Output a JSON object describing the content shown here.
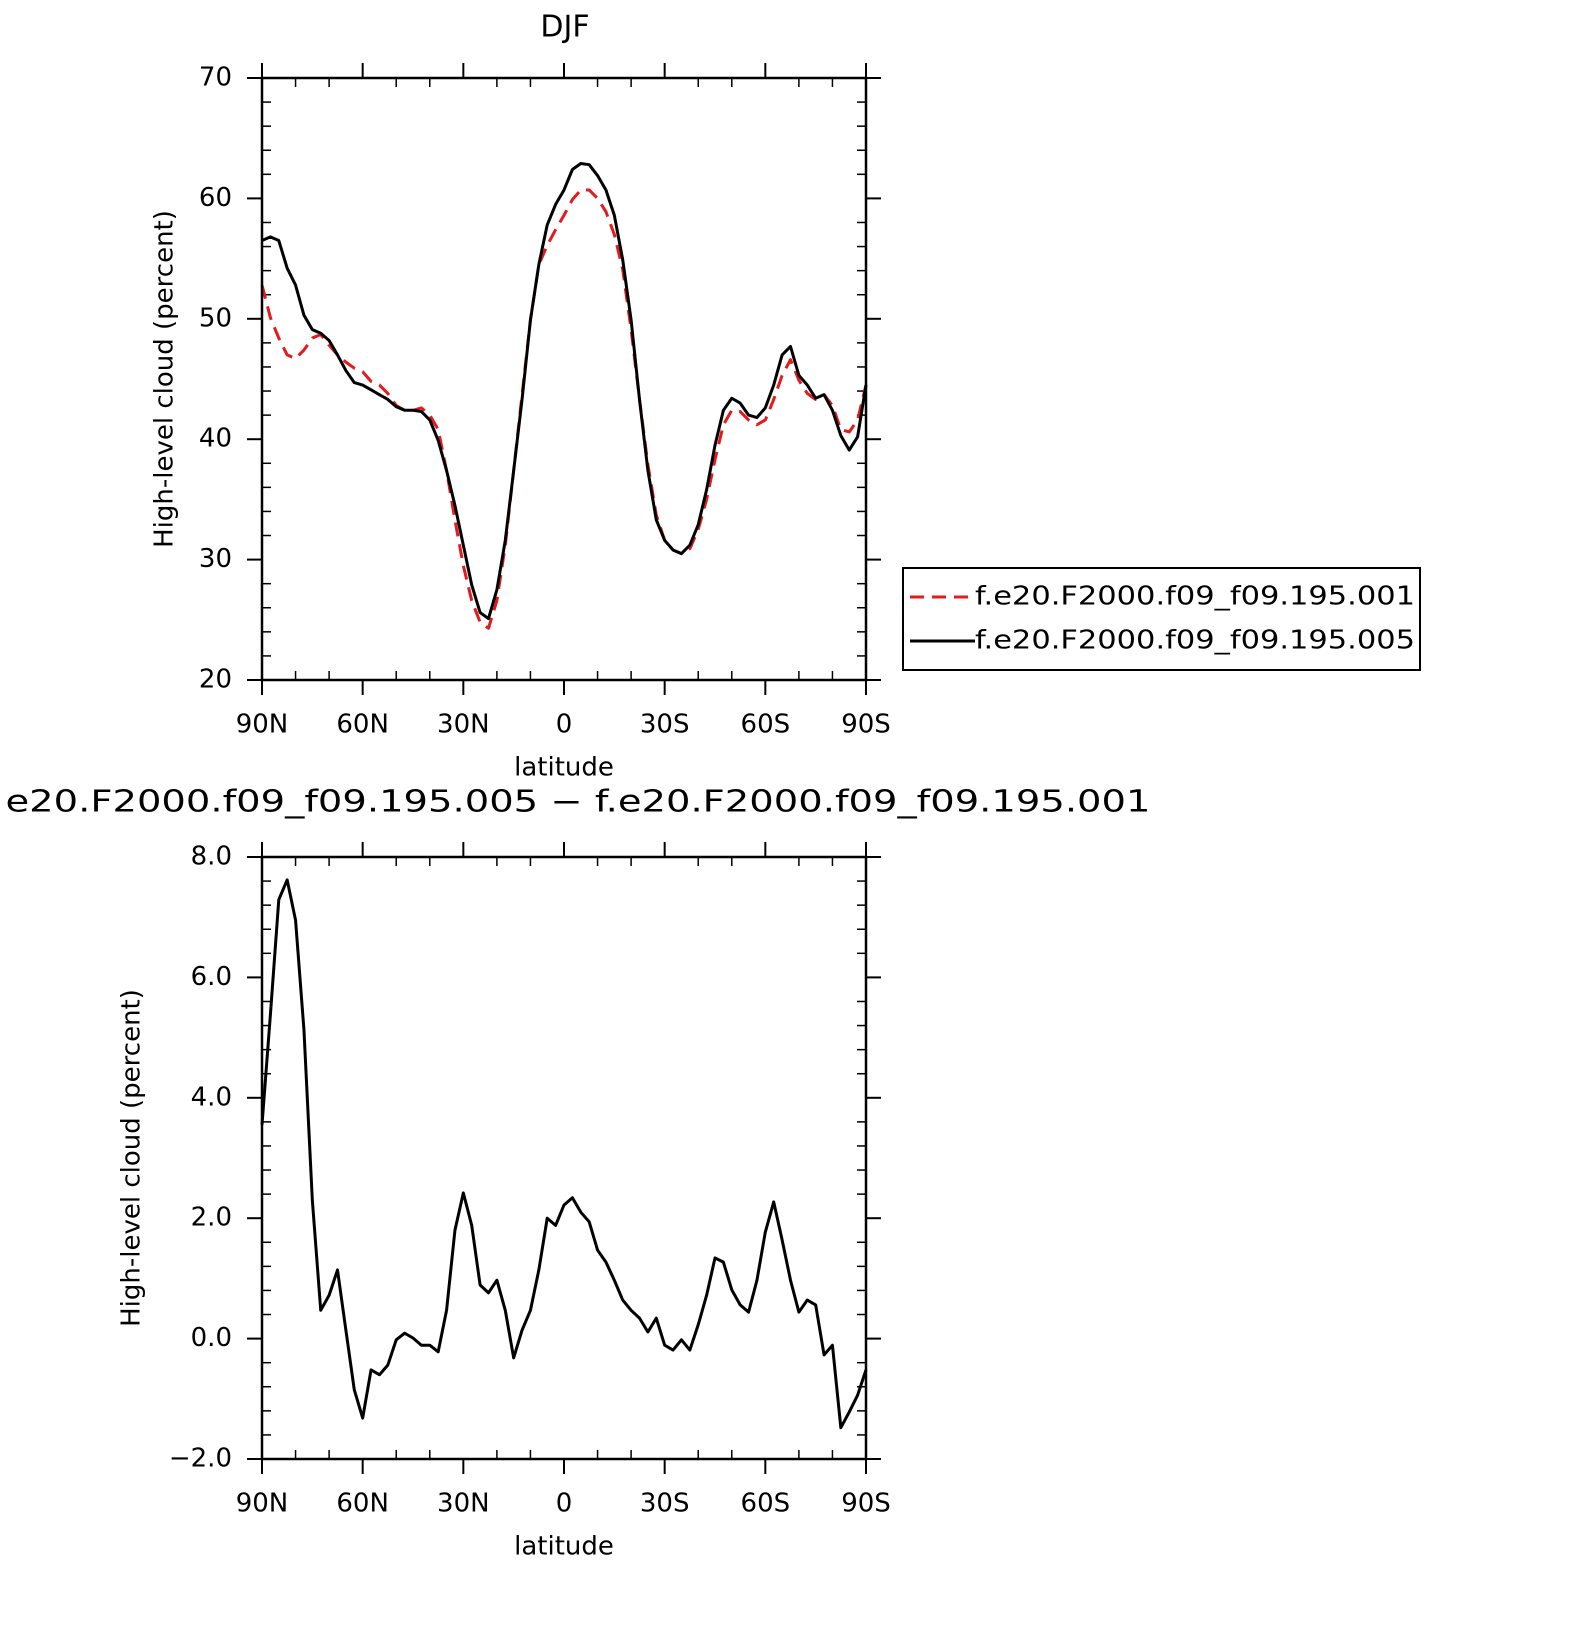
{
  "chart_data": [
    {
      "type": "line",
      "title": "DJF",
      "xlabel": "latitude",
      "ylabel": "High-level cloud (percent)",
      "x": [
        90,
        87.5,
        85,
        82.5,
        80,
        77.5,
        75,
        72.5,
        70,
        67.5,
        65,
        62.5,
        60,
        57.5,
        55,
        52.5,
        50,
        47.5,
        45,
        42.5,
        40,
        37.5,
        35,
        32.5,
        30,
        27.5,
        25,
        22.5,
        20,
        17.5,
        15,
        12.5,
        10,
        7.5,
        5,
        2.5,
        0,
        -2.5,
        -5,
        -7.5,
        -10,
        -12.5,
        -15,
        -17.5,
        -20,
        -22.5,
        -25,
        -27.5,
        -30,
        -32.5,
        -35,
        -37.5,
        -40,
        -42.5,
        -45,
        -47.5,
        -50,
        -52.5,
        -55,
        -57.5,
        -60,
        -62.5,
        -65,
        -67.5,
        -70,
        -72.5,
        -75,
        -77.5,
        -80,
        -82.5,
        -85,
        -87.5,
        -90
      ],
      "series": [
        {
          "name": "f.e20.F2000.f09_f09.195.001",
          "color": "#e41a1c",
          "dashed": true,
          "values": [
            52.8,
            50.1,
            48.4,
            47.0,
            46.7,
            47.4,
            48.4,
            48.7,
            47.8,
            47.0,
            46.4,
            45.9,
            45.6,
            44.8,
            44.5,
            43.8,
            42.8,
            42.4,
            42.4,
            42.6,
            42.0,
            40.8,
            37.4,
            33.3,
            29.5,
            26.6,
            24.8,
            24.3,
            26.6,
            31.2,
            37.4,
            43.7,
            49.9,
            54.5,
            56.1,
            57.4,
            58.6,
            59.9,
            60.7,
            60.7,
            60.0,
            58.9,
            57.0,
            54.1,
            49.1,
            43.3,
            37.9,
            33.7,
            31.6,
            30.8,
            30.5,
            30.9,
            32.5,
            35.0,
            38.3,
            41.2,
            42.4,
            42.3,
            41.6,
            41.2,
            41.6,
            43.3,
            45.3,
            46.6,
            44.9,
            43.8,
            43.3,
            43.7,
            42.8,
            40.8,
            40.6,
            41.6,
            44.5
          ]
        },
        {
          "name": "f.e20.F2000.f09_f09.195.005",
          "color": "#000000",
          "dashed": false,
          "values": [
            56.5,
            56.8,
            56.5,
            54.2,
            52.8,
            50.3,
            49.1,
            48.8,
            48.2,
            47.0,
            45.7,
            44.7,
            44.5,
            44.1,
            43.7,
            43.3,
            42.7,
            42.4,
            42.4,
            42.3,
            41.6,
            39.9,
            37.4,
            34.5,
            31.2,
            27.9,
            25.6,
            25.1,
            27.5,
            31.6,
            37.4,
            43.3,
            49.9,
            54.5,
            57.8,
            59.5,
            60.7,
            62.4,
            62.9,
            62.8,
            61.9,
            60.7,
            58.6,
            54.9,
            49.9,
            43.3,
            37.4,
            33.3,
            31.6,
            30.8,
            30.5,
            31.2,
            32.9,
            35.8,
            39.5,
            42.4,
            43.4,
            43.0,
            42.0,
            41.8,
            42.6,
            44.5,
            47.0,
            47.7,
            45.3,
            44.5,
            43.4,
            43.7,
            42.4,
            40.3,
            39.1,
            40.2,
            44.5
          ]
        }
      ],
      "xlim": [
        90,
        -90
      ],
      "xticks": [
        {
          "value": 90,
          "label": "90N"
        },
        {
          "value": 60,
          "label": "60N"
        },
        {
          "value": 30,
          "label": "30N"
        },
        0,
        {
          "value": -30,
          "label": "30S"
        },
        {
          "value": -60,
          "label": "60S"
        },
        {
          "value": -90,
          "label": "90S"
        }
      ],
      "ylim": [
        20,
        70
      ],
      "yticks": [
        20,
        30,
        40,
        50,
        60,
        70
      ],
      "legend": "right"
    },
    {
      "type": "line",
      "title": "e20.F2000.f09_f09.195.005 − f.e20.F2000.f09_f09.195.001",
      "xlabel": "latitude",
      "ylabel": "High-level cloud (percent)",
      "x": [
        90,
        87.5,
        85,
        82.5,
        80,
        77.5,
        75,
        72.5,
        70,
        67.5,
        65,
        62.5,
        60,
        57.5,
        55,
        52.5,
        50,
        47.5,
        45,
        42.5,
        40,
        37.5,
        35,
        32.5,
        30,
        27.5,
        25,
        22.5,
        20,
        17.5,
        15,
        12.5,
        10,
        7.5,
        5,
        2.5,
        0,
        -2.5,
        -5,
        -7.5,
        -10,
        -12.5,
        -15,
        -17.5,
        -20,
        -22.5,
        -25,
        -27.5,
        -30,
        -32.5,
        -35,
        -37.5,
        -40,
        -42.5,
        -45,
        -47.5,
        -50,
        -52.5,
        -55,
        -57.5,
        -60,
        -62.5,
        -65,
        -67.5,
        -70,
        -72.5,
        -75,
        -77.5,
        -80,
        -82.5,
        -85,
        -87.5,
        -90
      ],
      "series": [
        {
          "color": "#000000",
          "dashed": false,
          "values": [
            3.55,
            5.38,
            7.29,
            7.62,
            6.95,
            5.13,
            2.3,
            0.47,
            0.72,
            1.14,
            0.14,
            -0.85,
            -1.32,
            -0.52,
            -0.6,
            -0.44,
            -0.02,
            0.09,
            0.01,
            -0.11,
            -0.11,
            -0.22,
            0.47,
            1.8,
            2.42,
            1.88,
            0.89,
            0.76,
            0.97,
            0.47,
            -0.32,
            0.14,
            0.47,
            1.14,
            2.0,
            1.88,
            2.22,
            2.34,
            2.1,
            1.94,
            1.47,
            1.27,
            0.97,
            0.64,
            0.47,
            0.34,
            0.11,
            0.34,
            -0.11,
            -0.19,
            -0.02,
            -0.19,
            0.23,
            0.72,
            1.34,
            1.27,
            0.81,
            0.56,
            0.44,
            0.97,
            1.77,
            2.27,
            1.64,
            0.97,
            0.44,
            0.64,
            0.56,
            -0.27,
            -0.11,
            -1.48,
            -1.22,
            -0.94,
            -0.52
          ]
        }
      ],
      "xlim": [
        90,
        -90
      ],
      "xticks": [
        {
          "value": 90,
          "label": "90N"
        },
        {
          "value": 60,
          "label": "60N"
        },
        {
          "value": 30,
          "label": "30N"
        },
        0,
        {
          "value": -30,
          "label": "30S"
        },
        {
          "value": -60,
          "label": "60S"
        },
        {
          "value": -90,
          "label": "90S"
        }
      ],
      "ylim": [
        -2,
        8
      ],
      "yticks": [
        {
          "value": -2,
          "label": "−2.0"
        },
        {
          "value": 0,
          "label": "0.0"
        },
        {
          "value": 2,
          "label": "2.0"
        },
        {
          "value": 4,
          "label": "4.0"
        },
        {
          "value": 6,
          "label": "6.0"
        },
        {
          "value": 8,
          "label": "8.0"
        }
      ]
    }
  ]
}
